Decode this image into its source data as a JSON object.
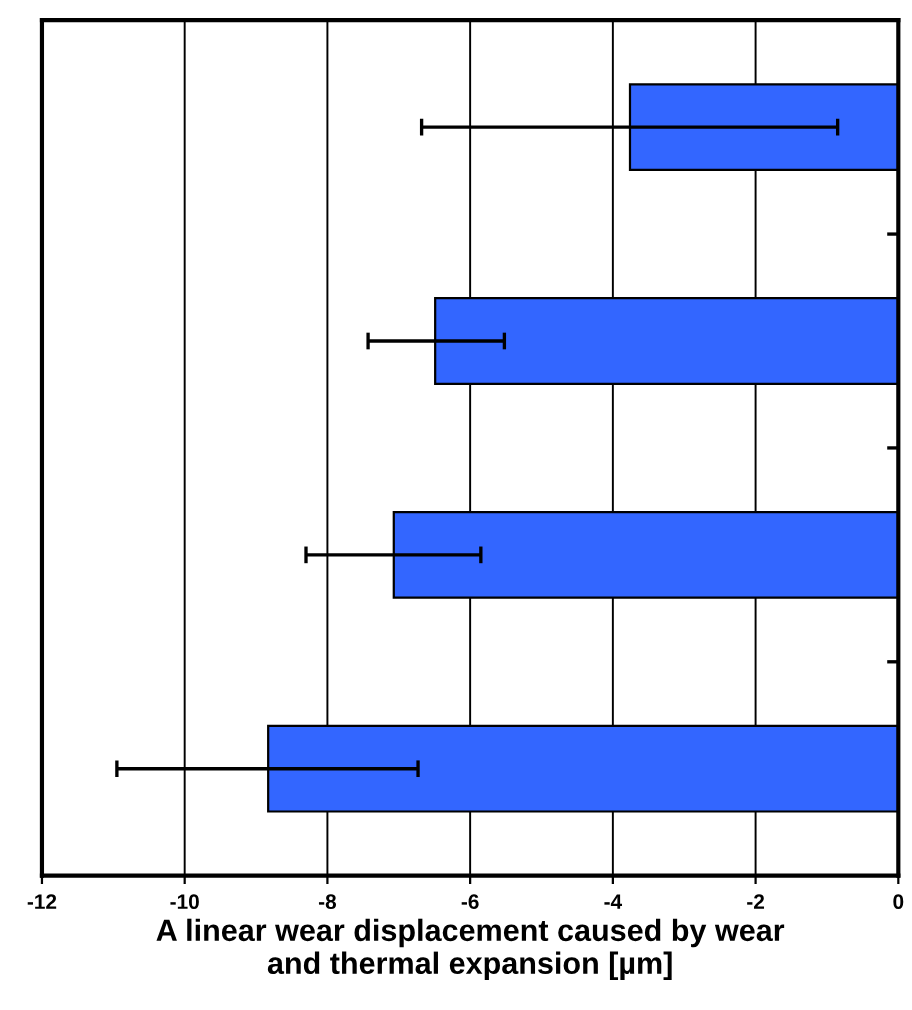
{
  "chart_data": {
    "type": "bar",
    "orientation": "horizontal",
    "xlabel": "A linear wear displacement caused by wear\nand thermal expansion [µm]",
    "categories": [
      null,
      null,
      null,
      null
    ],
    "values": [
      -3.76,
      -6.49,
      -7.07,
      -8.83
    ],
    "errors": [
      [
        -6.68,
        -0.85
      ],
      [
        -7.43,
        -5.52
      ],
      [
        -8.3,
        -5.85
      ],
      [
        -10.95,
        -6.73
      ]
    ],
    "color": "#3366ff",
    "xlim": [
      -12,
      0
    ],
    "xticks": [
      -12,
      -10,
      -8,
      -6,
      -4,
      -2,
      0
    ],
    "grid": "x",
    "legend": false
  }
}
